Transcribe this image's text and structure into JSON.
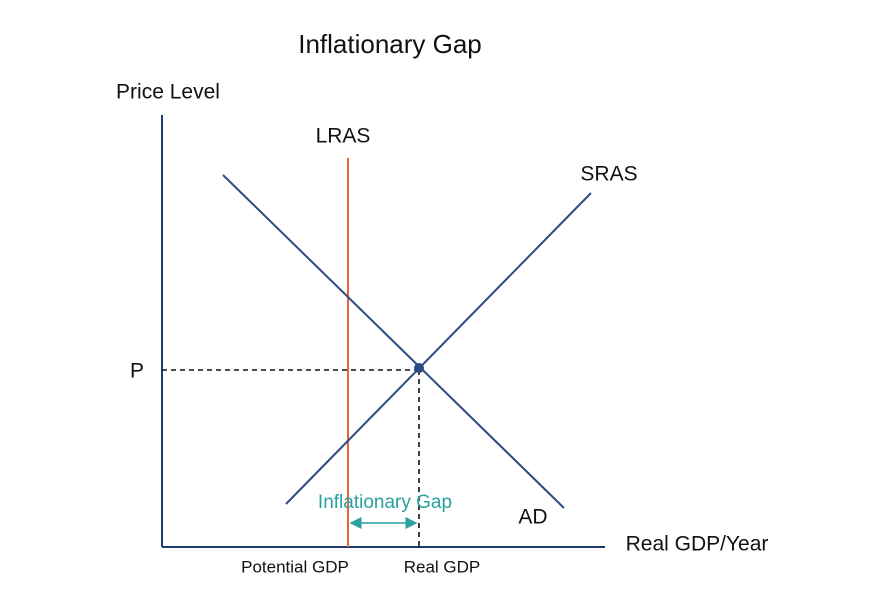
{
  "title": "Inflationary Gap",
  "axes": {
    "y_label": "Price Level",
    "x_label": "Real GDP/Year"
  },
  "curves": {
    "lras": "LRAS",
    "sras": "SRAS",
    "ad": "AD"
  },
  "price_label": "P",
  "gap_label": "Inflationary Gap",
  "x_markers": {
    "potential": "Potential GDP",
    "real": "Real GDP"
  }
}
